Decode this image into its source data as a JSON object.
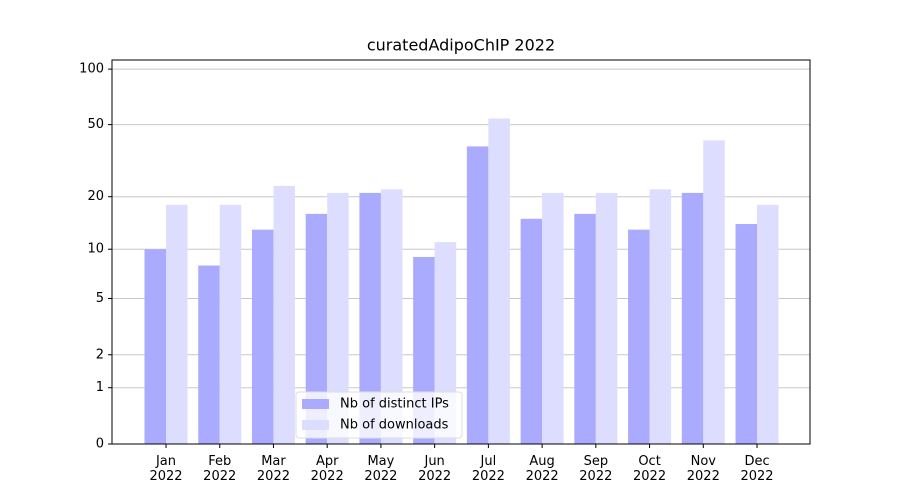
{
  "chart_data": {
    "type": "bar",
    "title": "curatedAdipoChIP 2022",
    "categories": [
      "Jan 2022",
      "Feb 2022",
      "Mar 2022",
      "Apr 2022",
      "May 2022",
      "Jun 2022",
      "Jul 2022",
      "Aug 2022",
      "Sep 2022",
      "Oct 2022",
      "Nov 2022",
      "Dec 2022"
    ],
    "series": [
      {
        "name": "Nb of distinct IPs",
        "color": "#aaaaff",
        "values": [
          10,
          8,
          13,
          16,
          21,
          9,
          38,
          15,
          16,
          13,
          21,
          14
        ]
      },
      {
        "name": "Nb of downloads",
        "color": "#ddddff",
        "values": [
          18,
          18,
          23,
          21,
          22,
          11,
          54,
          21,
          21,
          22,
          41,
          18
        ]
      }
    ],
    "yscale": "log1p",
    "ylim": [
      0,
      112
    ],
    "yticks": [
      0,
      1,
      2,
      5,
      10,
      20,
      50,
      100
    ],
    "grid": true,
    "legend": "lower center"
  }
}
